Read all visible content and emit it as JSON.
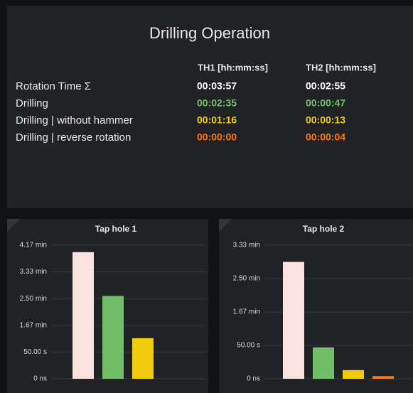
{
  "panel": {
    "title": "Drilling Operation",
    "columns": [
      "TH1 [hh:mm:ss]",
      "TH2 [hh:mm:ss]"
    ],
    "rows": [
      {
        "label": "Rotation Time Σ",
        "values": [
          "00:03:57",
          "00:02:55"
        ],
        "color": "#ffffff"
      },
      {
        "label": "Drilling",
        "values": [
          "00:02:35",
          "00:00:47"
        ],
        "color": "#73bf69"
      },
      {
        "label": "Drilling | without hammer",
        "values": [
          "00:01:16",
          "00:00:13"
        ],
        "color": "#f2cc0c"
      },
      {
        "label": "Drilling | reverse rotation",
        "values": [
          "00:00:00",
          "00:00:04"
        ],
        "color": "#ff780a"
      }
    ]
  },
  "chart_data": [
    {
      "type": "bar",
      "title": "Tap hole 1",
      "categories": [
        null,
        null,
        null,
        null
      ],
      "values": [
        237,
        155,
        76,
        0
      ],
      "colors": [
        "#fce2de",
        "#73bf69",
        "#f2cc0c",
        "#ff780a"
      ],
      "ylim": [
        0,
        250
      ],
      "yticks": [
        {
          "value": 0,
          "label": "0 ns"
        },
        {
          "value": 50,
          "label": "50.00 s"
        },
        {
          "value": 100,
          "label": "1.67 min"
        },
        {
          "value": 150,
          "label": "2.50 min"
        },
        {
          "value": 200,
          "label": "3.33 min"
        },
        {
          "value": 250,
          "label": "4.17 min"
        }
      ],
      "grid": true
    },
    {
      "type": "bar",
      "title": "Tap hole 2",
      "categories": [
        null,
        null,
        null,
        null
      ],
      "values": [
        175,
        47,
        13,
        4
      ],
      "colors": [
        "#fce2de",
        "#73bf69",
        "#f2cc0c",
        "#ff780a"
      ],
      "ylim": [
        0,
        200
      ],
      "yticks": [
        {
          "value": 0,
          "label": "0 ns"
        },
        {
          "value": 50,
          "label": "50.00 s"
        },
        {
          "value": 100,
          "label": "1.67 min"
        },
        {
          "value": 150,
          "label": "2.50 min"
        },
        {
          "value": 200,
          "label": "3.33 min"
        }
      ],
      "grid": true
    }
  ]
}
